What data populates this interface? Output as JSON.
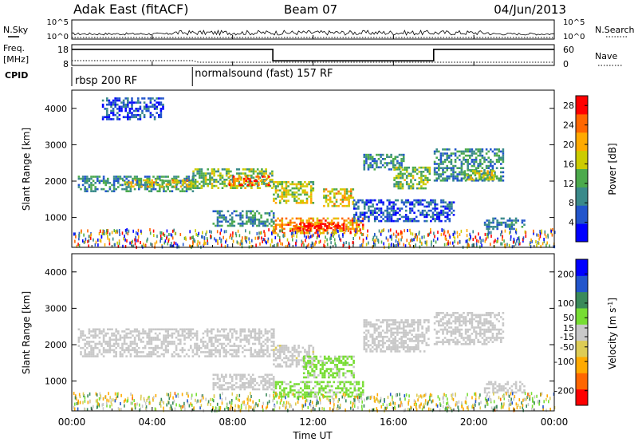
{
  "header": {
    "title": "Adak East (fitACF)",
    "beam": "Beam 07",
    "date": "04/Jun/2013"
  },
  "noise_panel": {
    "left_label": "N.Sky",
    "right_label": "N.Search",
    "left_ticks": [
      "10^5",
      "10^0"
    ],
    "right_ticks": [
      "10^5",
      "10^0"
    ]
  },
  "freq_panel": {
    "left_label": "Freq.",
    "left_unit": "[MHz]",
    "right_label": "Nave",
    "left_ticks": [
      "18",
      "8"
    ],
    "right_ticks": [
      "60",
      "0"
    ],
    "nave_levels": [
      {
        "from_hour": 0,
        "to_hour": 10,
        "value": 48
      },
      {
        "from_hour": 10,
        "to_hour": 18,
        "value": 12
      },
      {
        "from_hour": 18,
        "to_hour": 24,
        "value": 48
      }
    ]
  },
  "cpid": {
    "label": "CPID",
    "segments": [
      {
        "from_hour": 0,
        "to_hour": 6,
        "text": "rbsp 200 RF"
      },
      {
        "from_hour": 6,
        "to_hour": 24,
        "text": "normalsound (fast) 157 RF"
      }
    ]
  },
  "chart_data": [
    {
      "type": "heatmap",
      "title": "",
      "ylabel": "Slant Range [km]",
      "xlabel": "",
      "xlim": [
        0,
        24
      ],
      "ylim": [
        180,
        4500
      ],
      "yticks": [
        "4000",
        "3000",
        "2000",
        "1000"
      ],
      "ytick_values": [
        4000,
        3000,
        2000,
        1000
      ],
      "colorbar": {
        "label": "Power [dB]",
        "ticks": [
          "28",
          "24",
          "20",
          "16",
          "12",
          "8",
          "4"
        ],
        "tick_values": [
          28,
          24,
          20,
          16,
          12,
          8,
          4
        ],
        "range": [
          0,
          30
        ],
        "colors": [
          "#0000ff",
          "#2255cc",
          "#3a8a8a",
          "#4caa4c",
          "#cccc00",
          "#ffaa00",
          "#ff6600",
          "#ff0000"
        ]
      },
      "echo_regions": [
        {
          "t0": 0.3,
          "t1": 6.0,
          "r0": 1750,
          "r1": 2150,
          "level": 10
        },
        {
          "t0": 2.5,
          "t1": 6.0,
          "r0": 1850,
          "r1": 2050,
          "level": 18
        },
        {
          "t0": 6.0,
          "t1": 10.0,
          "r0": 1800,
          "r1": 2350,
          "level": 14
        },
        {
          "t0": 7.8,
          "t1": 9.8,
          "r0": 1900,
          "r1": 2150,
          "level": 24
        },
        {
          "t0": 10.0,
          "t1": 12.0,
          "r0": 1400,
          "r1": 2000,
          "level": 16
        },
        {
          "t0": 12.5,
          "t1": 14.0,
          "r0": 1300,
          "r1": 1800,
          "level": 18
        },
        {
          "t0": 10.0,
          "t1": 14.5,
          "r0": 600,
          "r1": 1000,
          "level": 22
        },
        {
          "t0": 11.0,
          "t1": 13.5,
          "r0": 650,
          "r1": 850,
          "level": 28
        },
        {
          "t0": 7.0,
          "t1": 10.0,
          "r0": 800,
          "r1": 1200,
          "level": 10
        },
        {
          "t0": 14.5,
          "t1": 16.5,
          "r0": 2300,
          "r1": 2750,
          "level": 10
        },
        {
          "t0": 16.0,
          "t1": 17.8,
          "r0": 1800,
          "r1": 2400,
          "level": 14
        },
        {
          "t0": 18.0,
          "t1": 21.5,
          "r0": 2000,
          "r1": 2900,
          "level": 10
        },
        {
          "t0": 19.5,
          "t1": 21.0,
          "r0": 2050,
          "r1": 2300,
          "level": 16
        },
        {
          "t0": 20.5,
          "t1": 22.5,
          "r0": 700,
          "r1": 1000,
          "level": 9
        },
        {
          "t0": 14.0,
          "t1": 19.0,
          "r0": 900,
          "r1": 1500,
          "level": 6
        },
        {
          "t0": 1.5,
          "t1": 4.5,
          "r0": 3700,
          "r1": 4300,
          "level": 5
        }
      ]
    },
    {
      "type": "heatmap",
      "title": "",
      "ylabel": "Slant Range [km]",
      "xlabel": "Time UT",
      "xlim": [
        0,
        24
      ],
      "ylim": [
        180,
        4500
      ],
      "xticks": [
        "00:00",
        "04:00",
        "08:00",
        "12:00",
        "16:00",
        "20:00",
        "00:00"
      ],
      "xtick_values": [
        0,
        4,
        8,
        12,
        16,
        20,
        24
      ],
      "yticks": [
        "4000",
        "3000",
        "2000",
        "1000"
      ],
      "ytick_values": [
        4000,
        3000,
        2000,
        1000
      ],
      "colorbar": {
        "label": "Velocity [m s^-1]",
        "ticks": [
          "200",
          "100",
          "50",
          "15",
          "-15",
          "-50",
          "-100",
          "-200"
        ],
        "tick_values": [
          200,
          100,
          50,
          15,
          -15,
          -50,
          -100,
          -200
        ],
        "range": [
          -250,
          250
        ],
        "colors": [
          "#ff0000",
          "#ff6600",
          "#ffaa00",
          "#ddcc55",
          "#c8c8c8",
          "#77dd33",
          "#3a8a5a",
          "#2255cc",
          "#0000ff"
        ]
      },
      "echo_regions": [
        {
          "t0": 0.3,
          "t1": 10.0,
          "r0": 1700,
          "r1": 2450,
          "velocity": 0
        },
        {
          "t0": 10.0,
          "t1": 12.0,
          "r0": 1400,
          "r1": 2000,
          "velocity": -10
        },
        {
          "t0": 11.5,
          "t1": 14.0,
          "r0": 1100,
          "r1": 1700,
          "velocity": 40
        },
        {
          "t0": 10.0,
          "t1": 14.5,
          "r0": 600,
          "r1": 1000,
          "velocity": 40
        },
        {
          "t0": 14.5,
          "t1": 17.8,
          "r0": 1800,
          "r1": 2700,
          "velocity": 0
        },
        {
          "t0": 18.0,
          "t1": 21.5,
          "r0": 2000,
          "r1": 2900,
          "velocity": 5
        },
        {
          "t0": 20.5,
          "t1": 22.5,
          "r0": 700,
          "r1": 1000,
          "velocity": 0
        },
        {
          "t0": 7.0,
          "t1": 10.0,
          "r0": 800,
          "r1": 1200,
          "velocity": -5
        }
      ]
    }
  ],
  "colors": {
    "axis": "#000000",
    "background": "#ffffff"
  }
}
